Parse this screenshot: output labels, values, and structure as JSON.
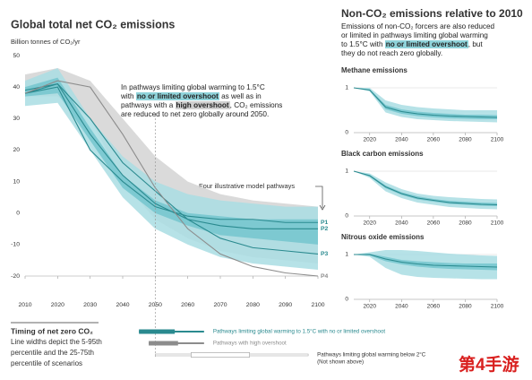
{
  "chart_data": [
    {
      "type": "line",
      "title": "Global total net CO₂ emissions",
      "y_label": "Billion tonnes of CO₂/yr",
      "x": [
        2010,
        2020,
        2030,
        2040,
        2050,
        2060,
        2070,
        2080,
        2090,
        2100
      ],
      "xlim": [
        2010,
        2100
      ],
      "xticks": [
        2010,
        2020,
        2030,
        2040,
        2050,
        2060,
        2070,
        2080,
        2090,
        2100
      ],
      "ylim": [
        -20,
        50
      ],
      "yticks": [
        50,
        40,
        30,
        20,
        10,
        0,
        -10,
        -20
      ],
      "grid": false,
      "bands": [
        {
          "color": "#d4d4d4",
          "upper": [
            44,
            46,
            42,
            30,
            18,
            10,
            6,
            4,
            3,
            2
          ],
          "lower": [
            37,
            37,
            30,
            10,
            -2,
            -8,
            -12,
            -14,
            -15,
            -16
          ]
        },
        {
          "color": "#a9dde3",
          "upper": [
            42,
            46,
            30,
            18,
            10,
            6,
            4,
            3,
            2,
            2
          ],
          "lower": [
            34,
            35,
            20,
            5,
            -5,
            -10,
            -14,
            -16,
            -17,
            -18
          ]
        },
        {
          "color": "#74c6ce",
          "upper": [
            40,
            43,
            27,
            12,
            4,
            0,
            -1,
            -2,
            -2,
            -2
          ],
          "lower": [
            37,
            38,
            23,
            8,
            0,
            -4,
            -7,
            -8,
            -9,
            -10
          ]
        }
      ],
      "series": [
        {
          "name": "P1",
          "color": "#2a8a8f",
          "values": [
            38,
            40,
            20,
            10,
            2,
            -1,
            -2,
            -2,
            -3,
            -3
          ]
        },
        {
          "name": "P2",
          "color": "#2a8a8f",
          "values": [
            39,
            41,
            25,
            12,
            3,
            -2,
            -4,
            -5,
            -5,
            -5
          ]
        },
        {
          "name": "P3",
          "color": "#2a8a8f",
          "values": [
            38,
            41,
            30,
            16,
            7,
            -2,
            -8,
            -11,
            -12,
            -13
          ]
        },
        {
          "name": "P4",
          "color": "#8c8c8c",
          "values": [
            38,
            42,
            40,
            25,
            8,
            -5,
            -13,
            -17,
            -19,
            -20
          ]
        }
      ],
      "pathways_label": "Four illustrative model pathways",
      "annotation": [
        [
          {
            "text": "In pathways limiting global warming to 1.5°C"
          }
        ],
        [
          {
            "text": "with "
          },
          {
            "text": "no or limited overshoot",
            "highlight": "#8fd3da"
          },
          {
            "text": " as well as in"
          }
        ],
        [
          {
            "text": "pathways with a "
          },
          {
            "text": "high overshoot",
            "highlight": "#cfcfcf"
          },
          {
            "text": ", CO₂ emissions"
          }
        ],
        [
          {
            "text": "are reduced to net zero globally around 2050."
          }
        ]
      ]
    },
    {
      "type": "line",
      "title": "Methane emissions",
      "x": [
        2010,
        2020,
        2030,
        2040,
        2050,
        2060,
        2070,
        2080,
        2090,
        2100
      ],
      "xlim": [
        2010,
        2100
      ],
      "xticks": [
        2020,
        2040,
        2060,
        2080,
        2100
      ],
      "ylim": [
        0,
        1.2
      ],
      "yticks": [
        1,
        0
      ],
      "grid": true,
      "bands": [
        {
          "color": "#a9dde3",
          "upper": [
            1,
            1,
            0.72,
            0.62,
            0.57,
            0.54,
            0.52,
            0.5,
            0.5,
            0.5
          ],
          "lower": [
            1,
            0.92,
            0.45,
            0.35,
            0.3,
            0.28,
            0.26,
            0.25,
            0.24,
            0.23
          ]
        },
        {
          "color": "#74c6ce",
          "upper": [
            1,
            0.97,
            0.62,
            0.52,
            0.47,
            0.44,
            0.42,
            0.4,
            0.4,
            0.39
          ],
          "lower": [
            1,
            0.94,
            0.52,
            0.42,
            0.37,
            0.34,
            0.32,
            0.31,
            0.3,
            0.3
          ]
        }
      ],
      "series": [
        {
          "color": "#2a8a8f",
          "values": [
            1,
            0.95,
            0.57,
            0.47,
            0.42,
            0.39,
            0.37,
            0.36,
            0.35,
            0.34
          ]
        }
      ]
    },
    {
      "type": "line",
      "title": "Black carbon emissions",
      "x": [
        2010,
        2020,
        2030,
        2040,
        2050,
        2060,
        2070,
        2080,
        2090,
        2100
      ],
      "xlim": [
        2010,
        2100
      ],
      "xticks": [
        2020,
        2040,
        2060,
        2080,
        2100
      ],
      "ylim": [
        0,
        1.2
      ],
      "yticks": [
        1,
        0
      ],
      "grid": true,
      "bands": [
        {
          "color": "#a9dde3",
          "upper": [
            1,
            0.95,
            0.75,
            0.6,
            0.5,
            0.45,
            0.42,
            0.4,
            0.38,
            0.37
          ],
          "lower": [
            1,
            0.85,
            0.55,
            0.4,
            0.3,
            0.25,
            0.2,
            0.18,
            0.16,
            0.15
          ]
        },
        {
          "color": "#74c6ce",
          "upper": [
            1,
            0.92,
            0.68,
            0.53,
            0.44,
            0.38,
            0.34,
            0.32,
            0.3,
            0.29
          ],
          "lower": [
            1,
            0.88,
            0.62,
            0.47,
            0.37,
            0.32,
            0.27,
            0.25,
            0.23,
            0.22
          ]
        }
      ],
      "series": [
        {
          "color": "#2a8a8f",
          "values": [
            1,
            0.9,
            0.65,
            0.5,
            0.4,
            0.35,
            0.3,
            0.28,
            0.26,
            0.25
          ]
        }
      ]
    },
    {
      "type": "line",
      "title": "Nitrous oxide emissions",
      "x": [
        2010,
        2020,
        2030,
        2040,
        2050,
        2060,
        2070,
        2080,
        2090,
        2100
      ],
      "xlim": [
        2010,
        2100
      ],
      "xticks": [
        2020,
        2040,
        2060,
        2080,
        2100
      ],
      "ylim": [
        0,
        1.2
      ],
      "yticks": [
        1,
        0
      ],
      "grid": true,
      "bands": [
        {
          "color": "#a9dde3",
          "upper": [
            1,
            1.05,
            1.1,
            1.1,
            1.08,
            1.05,
            1.02,
            1,
            0.98,
            0.97
          ],
          "lower": [
            1,
            0.95,
            0.7,
            0.55,
            0.5,
            0.48,
            0.47,
            0.46,
            0.45,
            0.45
          ]
        },
        {
          "color": "#74c6ce",
          "upper": [
            1,
            1.02,
            0.95,
            0.88,
            0.85,
            0.83,
            0.81,
            0.8,
            0.8,
            0.8
          ],
          "lower": [
            1,
            0.98,
            0.85,
            0.78,
            0.73,
            0.7,
            0.68,
            0.67,
            0.66,
            0.65
          ]
        }
      ],
      "series": [
        {
          "color": "#2a8a8f",
          "values": [
            1,
            1,
            0.9,
            0.83,
            0.79,
            0.76,
            0.75,
            0.74,
            0.73,
            0.72
          ]
        }
      ]
    }
  ],
  "non_co2": {
    "title": "Non-CO₂ emissions relative to 2010",
    "description": [
      [
        {
          "text": "Emissions of non-CO₂ forcers are also reduced"
        }
      ],
      [
        {
          "text": "or limited in pathways limiting global warming"
        }
      ],
      [
        {
          "text": "to 1.5°C with "
        },
        {
          "text": "no or limited overshoot",
          "highlight": "#8fd3da"
        },
        {
          "text": ", but"
        }
      ],
      [
        {
          "text": "they do not reach zero globally."
        }
      ]
    ]
  },
  "timing": {
    "title": "Timing of net zero CO₂",
    "note": [
      "Line widths depict the 5-95th",
      "percentile and the 25-75th",
      "percentile of scenarios"
    ],
    "items": [
      {
        "label": "Pathways limiting global warming to 1.5°C with no or limited overshoot",
        "color": "#2a8a8f",
        "range_5_95": [
          2045,
          2065
        ],
        "range_25_75": [
          2045,
          2056
        ]
      },
      {
        "label": "Pathways with high overshoot",
        "color": "#8c8c8c",
        "range_5_95": [
          2048,
          2065
        ],
        "range_25_75": [
          2048,
          2057
        ]
      },
      {
        "label": "Pathways limiting global warming below 2°C",
        "sublabel": "(Not shown above)",
        "color": "#ffffff",
        "range_5_95": [
          2050,
          2097
        ],
        "range_25_75": [
          2061,
          2079
        ]
      }
    ]
  },
  "watermark": "第4手游"
}
